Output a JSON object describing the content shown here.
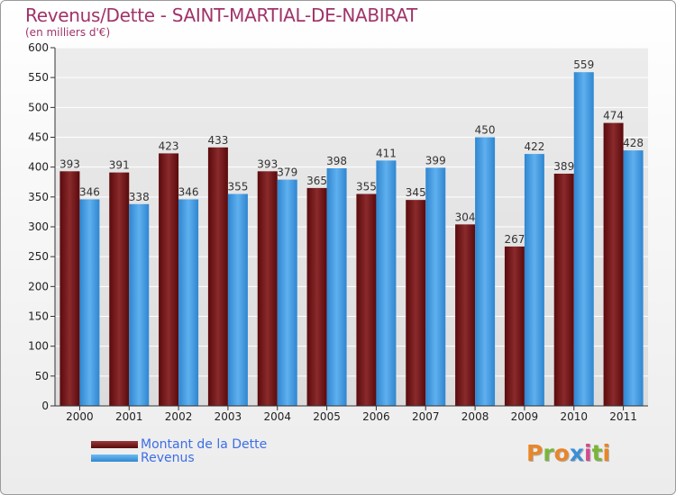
{
  "title": "Revenus/Dette - SAINT-MARTIAL-DE-NABIRAT",
  "subtitle": "(en milliers d'€)",
  "logo": {
    "letters": [
      "P",
      "r",
      "o",
      "x",
      "i",
      "t",
      "i"
    ],
    "colors": [
      "#e8862a",
      "#7ab53a",
      "#e8862a",
      "#3b8fd6",
      "#d14b8f",
      "#7ab53a",
      "#e8862a"
    ]
  },
  "chart_data": {
    "type": "bar",
    "title": "Revenus/Dette - SAINT-MARTIAL-DE-NABIRAT",
    "subtitle": "(en milliers d'€)",
    "categories": [
      "2000",
      "2001",
      "2002",
      "2003",
      "2004",
      "2005",
      "2006",
      "2007",
      "2008",
      "2009",
      "2010",
      "2011"
    ],
    "series": [
      {
        "name": "Montant de la Dette",
        "color": "#7a1a1c",
        "values": [
          393,
          391,
          423,
          433,
          393,
          365,
          355,
          345,
          304,
          267,
          389,
          474
        ]
      },
      {
        "name": "Revenus",
        "color": "#4fa3e6",
        "values": [
          346,
          338,
          346,
          355,
          379,
          398,
          411,
          399,
          450,
          422,
          559,
          428
        ]
      }
    ],
    "ylim": [
      0,
      600
    ],
    "yticks": [
      0,
      50,
      100,
      150,
      200,
      250,
      300,
      350,
      400,
      450,
      500,
      550,
      600
    ],
    "grid": true,
    "legend_position": "bottom-left"
  }
}
